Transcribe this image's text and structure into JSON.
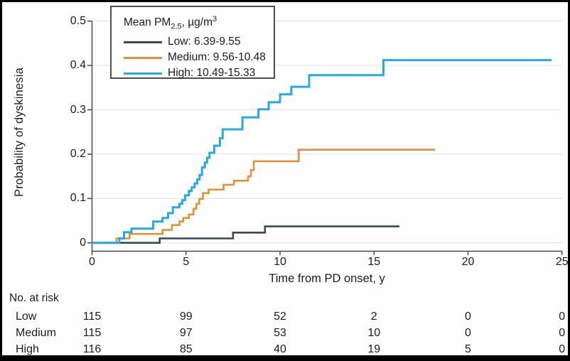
{
  "legend": {
    "title": {
      "prefix": "Mean PM",
      "sub": "2.5",
      "mid": ", µg/m",
      "sup": "3"
    }
  },
  "chart_data": {
    "type": "line",
    "subtype": "kaplan-meier-step",
    "title": "",
    "xlabel": "Time from PD onset, y",
    "ylabel": "Probability of dyskinesia",
    "xlim": [
      0,
      25
    ],
    "ylim": [
      0,
      0.5
    ],
    "x_tick_values": [
      0,
      5,
      10,
      15,
      20,
      25
    ],
    "x_tick_labels": [
      "0",
      "5",
      "10",
      "15",
      "20",
      "25"
    ],
    "y_tick_values": [
      0,
      0.1,
      0.2,
      0.3,
      0.4,
      0.5
    ],
    "y_tick_labels": [
      "0",
      "0.1",
      "0.2",
      "0.3",
      "0.4",
      "0.5"
    ],
    "grid": "horizontal",
    "legend_position": "top-left",
    "series": [
      {
        "name": "Low",
        "legend_label": "Low: 6.39-9.55",
        "color": "#36495a",
        "start": [
          0,
          0
        ],
        "steps": [
          [
            3.6,
            0.01
          ],
          [
            7.5,
            0.023
          ],
          [
            9.2,
            0.037
          ]
        ],
        "end": 16.35
      },
      {
        "name": "Medium",
        "legend_label": "Medium: 9.56-10.48",
        "color": "#e0913a",
        "start": [
          0,
          0
        ],
        "steps": [
          [
            1.3,
            0.01
          ],
          [
            2.0,
            0.02
          ],
          [
            3.75,
            0.029
          ],
          [
            4.25,
            0.04
          ],
          [
            4.65,
            0.048
          ],
          [
            4.85,
            0.056
          ],
          [
            5.15,
            0.064
          ],
          [
            5.4,
            0.077
          ],
          [
            5.55,
            0.088
          ],
          [
            5.7,
            0.099
          ],
          [
            5.9,
            0.112
          ],
          [
            6.2,
            0.12
          ],
          [
            7.0,
            0.131
          ],
          [
            7.55,
            0.14
          ],
          [
            8.3,
            0.15
          ],
          [
            8.45,
            0.164
          ],
          [
            8.6,
            0.184
          ],
          [
            11.0,
            0.21
          ]
        ],
        "end": 18.25
      },
      {
        "name": "High",
        "legend_label": "High: 10.49-15.33",
        "color": "#2aa9e0",
        "start": [
          0,
          0
        ],
        "steps": [
          [
            1.45,
            0.01
          ],
          [
            1.7,
            0.024
          ],
          [
            2.1,
            0.032
          ],
          [
            3.25,
            0.048
          ],
          [
            3.75,
            0.056
          ],
          [
            4.05,
            0.067
          ],
          [
            4.3,
            0.08
          ],
          [
            4.65,
            0.088
          ],
          [
            4.8,
            0.096
          ],
          [
            4.95,
            0.107
          ],
          [
            5.15,
            0.117
          ],
          [
            5.3,
            0.125
          ],
          [
            5.45,
            0.134
          ],
          [
            5.6,
            0.143
          ],
          [
            5.72,
            0.153
          ],
          [
            5.85,
            0.17
          ],
          [
            6.0,
            0.181
          ],
          [
            6.12,
            0.192
          ],
          [
            6.25,
            0.203
          ],
          [
            6.5,
            0.219
          ],
          [
            6.8,
            0.236
          ],
          [
            6.95,
            0.256
          ],
          [
            8.0,
            0.283
          ],
          [
            8.85,
            0.301
          ],
          [
            9.4,
            0.317
          ],
          [
            10.0,
            0.335
          ],
          [
            10.6,
            0.352
          ],
          [
            11.55,
            0.378
          ],
          [
            15.5,
            0.412
          ]
        ],
        "end": 24.45
      }
    ]
  },
  "risk_table": {
    "title": "No. at risk",
    "times": [
      0,
      5,
      10,
      15,
      20,
      25
    ],
    "rows": [
      {
        "label": "Low",
        "counts": [
          "115",
          "99",
          "52",
          "2",
          "0",
          "0"
        ]
      },
      {
        "label": "Medium",
        "counts": [
          "115",
          "97",
          "53",
          "10",
          "0",
          "0"
        ]
      },
      {
        "label": "High",
        "counts": [
          "116",
          "85",
          "40",
          "19",
          "5",
          "0"
        ]
      }
    ]
  },
  "colors": {
    "low": "#36495a",
    "medium": "#e0913a",
    "high": "#2aa9e0",
    "grid": "#e8e8ea",
    "axis": "#4a4a4a",
    "text": "#1c1c1c",
    "frame": "#000000"
  }
}
